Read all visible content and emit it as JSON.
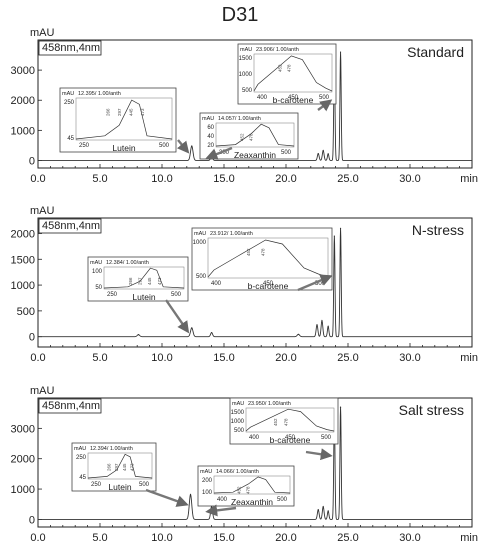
{
  "figure": {
    "title": "D31"
  },
  "chart_data": [
    {
      "type": "line",
      "wavelength_label": "458nm,4nm",
      "condition_label": "Standard",
      "ylabel": "mAU",
      "xlabel": "min",
      "xlim": [
        0,
        35
      ],
      "ylim": [
        -250,
        4000
      ],
      "x_ticks": [
        0.0,
        5.0,
        10.0,
        15.0,
        20.0,
        25.0,
        30.0
      ],
      "x_tick_labels": [
        "0.0",
        "5.0",
        "10.0",
        "15.0",
        "20.0",
        "25.0",
        "30.0"
      ],
      "y_ticks": [
        0,
        1000,
        2000,
        3000
      ],
      "y_tick_labels": [
        "0",
        "1000",
        "2000",
        "3000"
      ],
      "baseline": 0,
      "peaks": [
        {
          "t": 12.4,
          "h": 480,
          "w": 0.1
        },
        {
          "t": 14.0,
          "h": 150,
          "w": 0.08
        },
        {
          "t": 22.6,
          "h": 230,
          "w": 0.07
        },
        {
          "t": 23.0,
          "h": 330,
          "w": 0.07
        },
        {
          "t": 23.4,
          "h": 220,
          "w": 0.06
        },
        {
          "t": 23.9,
          "h": 3300,
          "w": 0.05
        },
        {
          "t": 24.4,
          "h": 3600,
          "w": 0.05
        }
      ],
      "insets": [
        {
          "peak_label": "12.395/ 1.00/anth",
          "compound": "Lutein",
          "unit": "mAU",
          "y_ticks": [
            "250",
            "45"
          ],
          "x_ticks": [
            "250",
            "500"
          ],
          "peak_numbers": [
            "266",
            "297",
            "445",
            "473"
          ]
        },
        {
          "peak_label": "14.057/ 1.00/anth",
          "compound": "Zeaxanthin",
          "unit": "mAU",
          "y_ticks": [
            "60",
            "40",
            "20"
          ],
          "x_ticks": [
            "300",
            "500"
          ],
          "peak_numbers": [
            "452",
            "478"
          ]
        },
        {
          "peak_label": "23.906/ 1.00/anth",
          "compound": "b-carotene",
          "unit": "mAU",
          "y_ticks": [
            "1500",
            "1000",
            "500"
          ],
          "x_ticks": [
            "400",
            "450",
            "500"
          ],
          "peak_numbers": [
            "452",
            "478"
          ]
        }
      ]
    },
    {
      "type": "line",
      "wavelength_label": "458nm,4nm",
      "condition_label": "N-stress",
      "ylabel": "mAU",
      "xlabel": "min",
      "xlim": [
        0,
        35
      ],
      "ylim": [
        -200,
        2300
      ],
      "x_ticks": [
        0.0,
        5.0,
        10.0,
        15.0,
        20.0,
        25.0,
        30.0
      ],
      "x_tick_labels": [
        "0.0",
        "5.0",
        "10.0",
        "15.0",
        "20.0",
        "25.0",
        "30.0"
      ],
      "y_ticks": [
        0,
        500,
        1000,
        1500,
        2000
      ],
      "y_tick_labels": [
        "0",
        "500",
        "1000",
        "1500",
        "2000"
      ],
      "baseline": 0,
      "peaks": [
        {
          "t": 8.1,
          "h": 40,
          "w": 0.1
        },
        {
          "t": 12.4,
          "h": 170,
          "w": 0.1
        },
        {
          "t": 14.0,
          "h": 80,
          "w": 0.08
        },
        {
          "t": 21.0,
          "h": 45,
          "w": 0.1
        },
        {
          "t": 22.5,
          "h": 230,
          "w": 0.07
        },
        {
          "t": 22.9,
          "h": 310,
          "w": 0.07
        },
        {
          "t": 23.4,
          "h": 200,
          "w": 0.06
        },
        {
          "t": 23.9,
          "h": 1950,
          "w": 0.05
        },
        {
          "t": 24.4,
          "h": 2100,
          "w": 0.05
        }
      ],
      "insets": [
        {
          "peak_label": "12.384/ 1.00/anth",
          "compound": "Lutein",
          "unit": "mAU",
          "y_ticks": [
            "100",
            "50"
          ],
          "x_ticks": [
            "250",
            "500"
          ],
          "peak_numbers": [
            "266",
            "297",
            "445",
            "473"
          ]
        },
        {
          "peak_label": "23.912/ 1.00/anth",
          "compound": "b-carotene",
          "unit": "mAU",
          "y_ticks": [
            "1000",
            "500"
          ],
          "x_ticks": [
            "400",
            "450",
            "500"
          ],
          "peak_numbers": [
            "452",
            "478"
          ]
        }
      ]
    },
    {
      "type": "line",
      "wavelength_label": "458nm,4nm",
      "condition_label": "Salt stress",
      "ylabel": "mAU",
      "xlabel": "min",
      "xlim": [
        0,
        35
      ],
      "ylim": [
        -250,
        4000
      ],
      "x_ticks": [
        0.0,
        5.0,
        10.0,
        15.0,
        20.0,
        25.0,
        30.0
      ],
      "x_tick_labels": [
        "0.0",
        "5.0",
        "10.0",
        "15.0",
        "20.0",
        "25.0",
        "30.0"
      ],
      "y_ticks": [
        0,
        1000,
        2000,
        3000
      ],
      "y_tick_labels": [
        "0",
        "1000",
        "2000",
        "3000"
      ],
      "baseline": 0,
      "peaks": [
        {
          "t": 12.3,
          "h": 820,
          "w": 0.1
        },
        {
          "t": 14.0,
          "h": 430,
          "w": 0.08
        },
        {
          "t": 22.6,
          "h": 320,
          "w": 0.07
        },
        {
          "t": 23.0,
          "h": 420,
          "w": 0.07
        },
        {
          "t": 23.4,
          "h": 280,
          "w": 0.06
        },
        {
          "t": 23.9,
          "h": 3500,
          "w": 0.05
        },
        {
          "t": 24.4,
          "h": 3700,
          "w": 0.05
        }
      ],
      "insets": [
        {
          "peak_label": "12.394/ 1.00/anth",
          "compound": "Lutein",
          "unit": "mAU",
          "y_ticks": [
            "250",
            "45"
          ],
          "x_ticks": [
            "250",
            "500"
          ],
          "peak_numbers": [
            "266",
            "297",
            "445",
            "473"
          ]
        },
        {
          "peak_label": "14.066/ 1.00/anth",
          "compound": "Zeaxanthin",
          "unit": "mAU",
          "y_ticks": [
            "200",
            "100"
          ],
          "x_ticks": [
            "400",
            "500"
          ],
          "peak_numbers": [
            "452",
            "478"
          ]
        },
        {
          "peak_label": "23.950/ 1.00/anth",
          "compound": "b-carotene",
          "unit": "mAU",
          "y_ticks": [
            "1500",
            "1000",
            "500"
          ],
          "x_ticks": [
            "400",
            "450",
            "500"
          ],
          "peak_numbers": [
            "452",
            "478"
          ]
        }
      ]
    }
  ]
}
